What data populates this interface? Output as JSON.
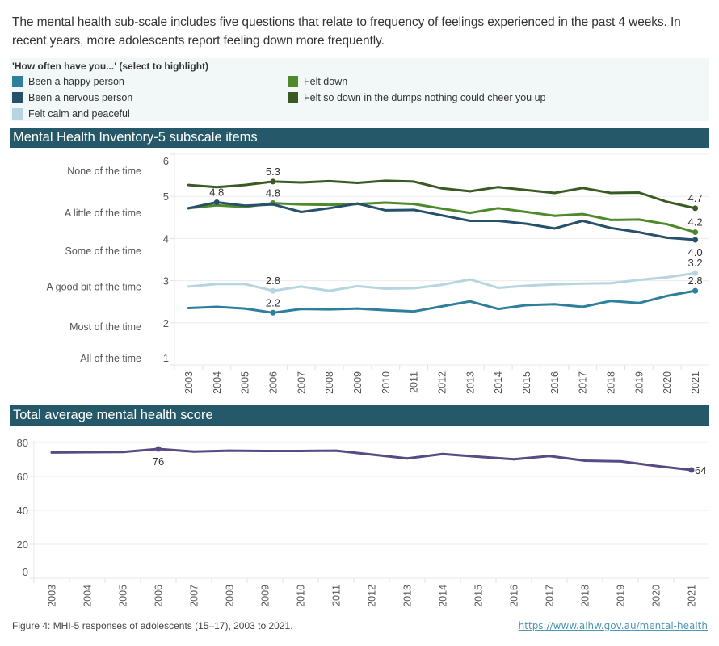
{
  "intro_text": "The mental health sub-scale includes five questions that relate to frequency of feelings experienced in the past 4 weeks. In recent years, more adolescents report feeling down more frequently.",
  "legend": {
    "title": "'How often have you...' (select to highlight)",
    "items": [
      {
        "label": "Been a happy person",
        "color": "#2e7f9c"
      },
      {
        "label": "Been a nervous person",
        "color": "#27516a"
      },
      {
        "label": "Felt calm and peaceful",
        "color": "#b6d5e0"
      },
      {
        "label": "Felt down",
        "color": "#4e8a2c"
      },
      {
        "label": "Felt so down in the dumps nothing could cheer you up",
        "color": "#3a5a24"
      }
    ]
  },
  "sections": {
    "subscale_title": "Mental Health Inventory-5 subscale items",
    "total_title": "Total average mental health score"
  },
  "chart_data": [
    {
      "type": "line",
      "title": "Mental Health Inventory-5 subscale items",
      "xlabel": "",
      "ylabel": "",
      "ylim": [
        1,
        6
      ],
      "yticks": [
        1,
        2,
        3,
        4,
        5,
        6
      ],
      "category_labels": [
        {
          "label": "None of the time",
          "value": 5.6
        },
        {
          "label": "A little of the time",
          "value": 4.6
        },
        {
          "label": "Some of the time",
          "value": 3.7
        },
        {
          "label": "A good bit of the time",
          "value": 2.85
        },
        {
          "label": "Most of the time",
          "value": 1.9
        },
        {
          "label": "All of the time",
          "value": 1.15
        }
      ],
      "grid": true,
      "x": [
        2003,
        2004,
        2005,
        2006,
        2007,
        2008,
        2009,
        2010,
        2011,
        2012,
        2013,
        2014,
        2015,
        2016,
        2017,
        2018,
        2019,
        2020,
        2021
      ],
      "series": [
        {
          "name": "Felt so down in the dumps nothing could cheer you up",
          "color": "#3a5a24",
          "values": [
            5.27,
            5.22,
            5.27,
            5.35,
            5.33,
            5.36,
            5.32,
            5.37,
            5.35,
            5.19,
            5.12,
            5.22,
            5.15,
            5.08,
            5.2,
            5.08,
            5.09,
            4.87,
            4.72
          ],
          "labels": [
            {
              "year": 2006,
              "text": "5.3",
              "pos": "above"
            },
            {
              "year": 2021,
              "text": "4.7",
              "pos": "above"
            }
          ]
        },
        {
          "name": "Felt down",
          "color": "#4e8a2c",
          "values": [
            4.72,
            4.79,
            4.75,
            4.84,
            4.81,
            4.8,
            4.82,
            4.85,
            4.82,
            4.71,
            4.61,
            4.72,
            4.63,
            4.54,
            4.58,
            4.44,
            4.45,
            4.34,
            4.15
          ],
          "labels": [
            {
              "year": 2006,
              "text": "4.8",
              "pos": "above"
            },
            {
              "year": 2021,
              "text": "4.2",
              "pos": "above"
            }
          ]
        },
        {
          "name": "Been a nervous person",
          "color": "#27516a",
          "values": [
            4.72,
            4.86,
            4.78,
            4.81,
            4.63,
            4.72,
            4.83,
            4.67,
            4.68,
            4.55,
            4.42,
            4.42,
            4.35,
            4.24,
            4.42,
            4.25,
            4.15,
            4.02,
            3.97
          ],
          "labels": [
            {
              "year": 2004,
              "text": "4.8",
              "pos": "above"
            },
            {
              "year": 2021,
              "text": "4.0",
              "pos": "below"
            }
          ]
        },
        {
          "name": "Felt calm and peaceful",
          "color": "#b6d5e0",
          "values": [
            2.86,
            2.92,
            2.92,
            2.76,
            2.86,
            2.76,
            2.87,
            2.81,
            2.82,
            2.9,
            3.03,
            2.83,
            2.88,
            2.91,
            2.93,
            2.94,
            3.02,
            3.08,
            3.18
          ],
          "labels": [
            {
              "year": 2006,
              "text": "2.8",
              "pos": "above"
            },
            {
              "year": 2021,
              "text": "3.2",
              "pos": "above"
            }
          ]
        },
        {
          "name": "Been a happy person",
          "color": "#2e7f9c",
          "values": [
            2.35,
            2.38,
            2.34,
            2.24,
            2.33,
            2.32,
            2.34,
            2.3,
            2.27,
            2.39,
            2.51,
            2.33,
            2.42,
            2.44,
            2.38,
            2.52,
            2.47,
            2.64,
            2.76
          ],
          "labels": [
            {
              "year": 2006,
              "text": "2.2",
              "pos": "above"
            },
            {
              "year": 2021,
              "text": "2.8",
              "pos": "above"
            }
          ]
        }
      ]
    },
    {
      "type": "line",
      "title": "Total average mental health score",
      "xlabel": "",
      "ylabel": "",
      "ylim": [
        0,
        80
      ],
      "yticks": [
        0,
        20,
        40,
        60,
        80
      ],
      "grid": true,
      "x": [
        2003,
        2004,
        2005,
        2006,
        2007,
        2008,
        2009,
        2010,
        2011,
        2012,
        2013,
        2014,
        2015,
        2016,
        2017,
        2018,
        2019,
        2020,
        2021
      ],
      "series": [
        {
          "name": "Total average mental health score",
          "color": "#574a85",
          "values": [
            74.1,
            74.3,
            74.4,
            76.2,
            74.6,
            75.2,
            75.0,
            75.0,
            75.2,
            72.9,
            70.6,
            73.2,
            71.6,
            70.1,
            72.0,
            69.3,
            68.9,
            66.2,
            63.8
          ],
          "labels": [
            {
              "year": 2006,
              "text": "76",
              "pos": "below"
            },
            {
              "year": 2021,
              "text": "64",
              "pos": "right"
            }
          ]
        }
      ]
    }
  ],
  "footer": {
    "caption": "Figure 4: MHI-5 responses of adolescents (15–17), 2003 to 2021.",
    "link_text": "https://www.aihw.gov.au/mental-health"
  }
}
